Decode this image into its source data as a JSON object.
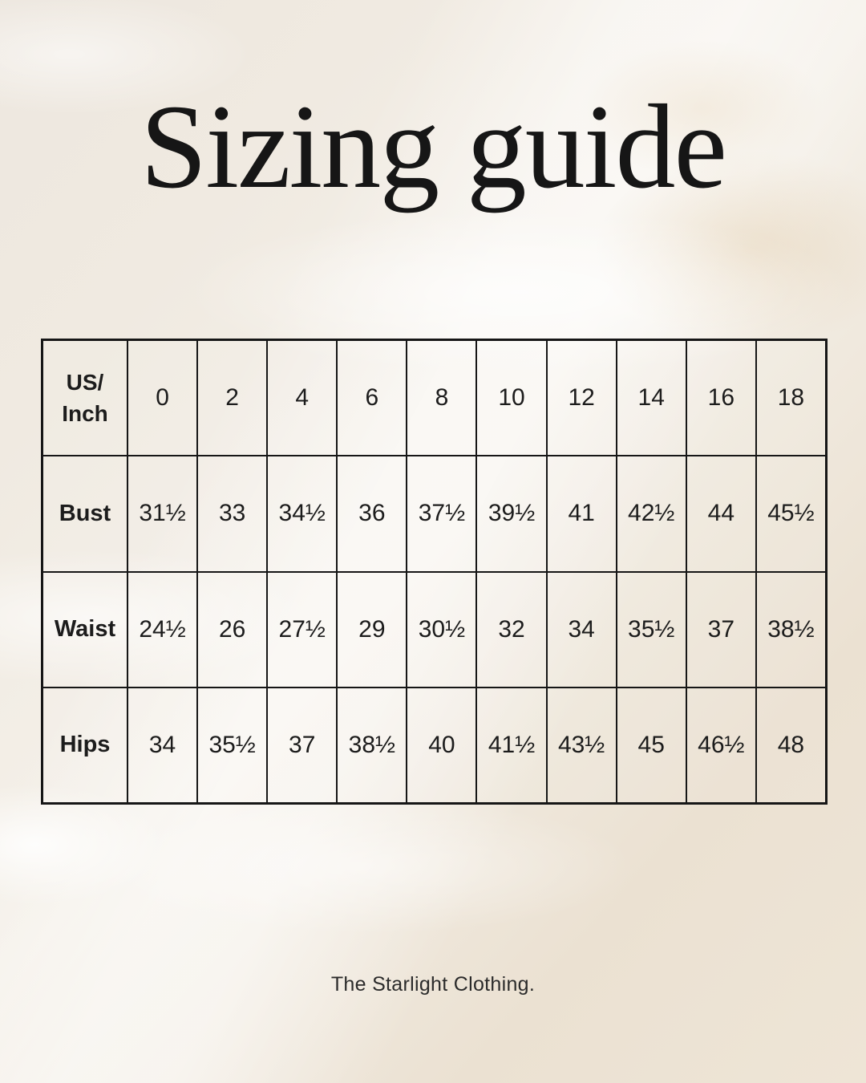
{
  "title": "Sizing guide",
  "brand": "The Starlight Clothing.",
  "table": {
    "corner_label": "US/\nInch",
    "sizes": [
      "0",
      "2",
      "4",
      "6",
      "8",
      "10",
      "12",
      "14",
      "16",
      "18"
    ],
    "rows": [
      {
        "label": "Bust",
        "values": [
          "31½",
          "33",
          "34½",
          "36",
          "37½",
          "39½",
          "41",
          "42½",
          "44",
          "45½"
        ]
      },
      {
        "label": "Waist",
        "values": [
          "24½",
          "26",
          "27½",
          "29",
          "30½",
          "32",
          "34",
          "35½",
          "37",
          "38½"
        ]
      },
      {
        "label": "Hips",
        "values": [
          "34",
          "35½",
          "37",
          "38½",
          "40",
          "41½",
          "43½",
          "45",
          "46½",
          "48"
        ]
      }
    ]
  },
  "colors": {
    "text": "#1c1c1c",
    "border": "#161616",
    "background_base": "#efe8de",
    "background_light": "#faf8f4",
    "background_tan": "#e0c8a5"
  }
}
